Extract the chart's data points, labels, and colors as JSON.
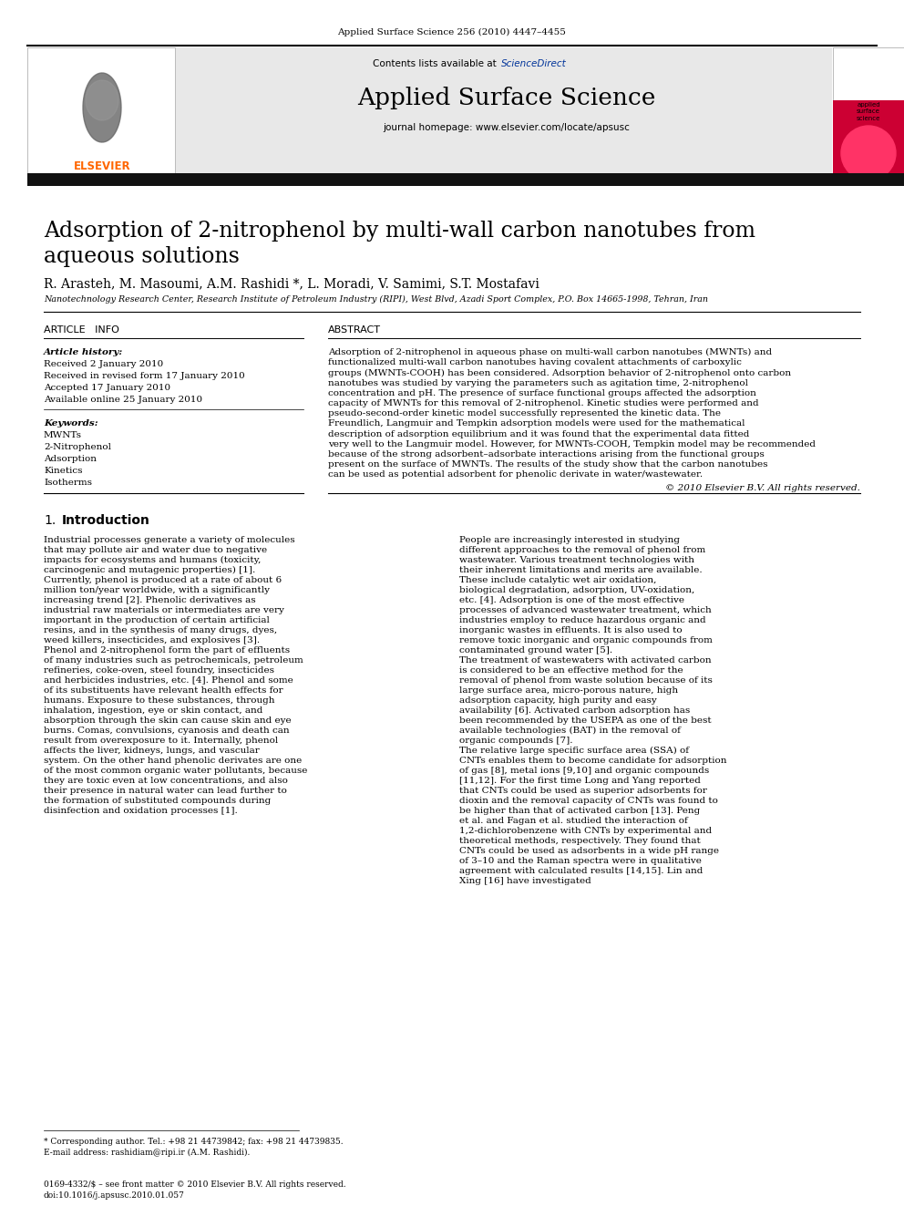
{
  "journal_header": "Applied Surface Science 256 (2010) 4447–4455",
  "contents_text": "Contents lists available at ",
  "sciencedirect": "ScienceDirect",
  "journal_name": "Applied Surface Science",
  "journal_homepage": "journal homepage: www.elsevier.com/locate/apsusc",
  "title_line1": "Adsorption of 2-nitrophenol by multi-wall carbon nanotubes from",
  "title_line2": "aqueous solutions",
  "authors": "R. Arasteh, M. Masoumi, A.M. Rashidi *, L. Moradi, V. Samimi, S.T. Mostafavi",
  "affiliation": "Nanotechnology Research Center, Research Institute of Petroleum Industry (RIPI), West Blvd, Azadi Sport Complex, P.O. Box 14665-1998, Tehran, Iran",
  "article_info_title": "ARTICLE   INFO",
  "abstract_title": "ABSTRACT",
  "article_history_label": "Article history:",
  "received": "Received 2 January 2010",
  "received_revised": "Received in revised form 17 January 2010",
  "accepted": "Accepted 17 January 2010",
  "available_online": "Available online 25 January 2010",
  "keywords_label": "Keywords:",
  "keywords": [
    "MWNTs",
    "2-Nitrophenol",
    "Adsorption",
    "Kinetics",
    "Isotherms"
  ],
  "abstract_text": "Adsorption of 2-nitrophenol in aqueous phase on multi-wall carbon nanotubes (MWNTs) and functionalized multi-wall carbon nanotubes having covalent attachments of carboxylic groups (MWNTs-COOH) has been considered. Adsorption behavior of 2-nitrophenol onto carbon nanotubes was studied by varying the parameters such as agitation time, 2-nitrophenol concentration and pH. The presence of surface functional groups affected the adsorption capacity of MWNTs for this removal of 2-nitrophenol. Kinetic studies were performed and pseudo-second-order kinetic model successfully represented the kinetic data. The Freundlich, Langmuir and Tempkin adsorption models were used for the mathematical description of adsorption equilibrium and it was found that the experimental data fitted very well to the Langmuir model. However, for MWNTs-COOH, Tempkin model may be recommended because of the strong adsorbent–adsorbate interactions arising from the functional groups present on the surface of MWNTs. The results of the study show that the carbon nanotubes can be used as potential adsorbent for phenolic derivate in water/wastewater.",
  "copyright": "© 2010 Elsevier B.V. All rights reserved.",
  "section_number": "1.",
  "section_title": "Introduction",
  "intro_left": "    Industrial processes generate a variety of molecules that may pollute air and water due to negative impacts for ecosystems and humans (toxicity, carcinogenic and mutagenic properties) [1]. Currently, phenol is produced at a rate of about 6 million ton/year worldwide, with a significantly increasing trend [2]. Phenolic derivatives as industrial raw materials or intermediates are very important in the production of certain artificial resins, and in the synthesis of many drugs, dyes, weed killers, insecticides, and explosives [3]. Phenol and 2-nitrophenol form the part of effluents of many industries such as petrochemicals, petroleum refineries, coke-oven, steel foundry, insecticides and herbicides industries, etc. [4]. Phenol and some of its substituents have relevant health effects for humans. Exposure to these substances, through inhalation, ingestion, eye or skin contact, and absorption through the skin can cause skin and eye burns. Comas, convulsions, cyanosis and death can result from overexposure to it. Internally, phenol affects the liver, kidneys, lungs, and vascular system. On the other hand phenolic derivates are one of the most common organic water pollutants, because they are toxic even at low concentrations, and also their presence in natural water can lead further to the formation of substituted compounds during disinfection and oxidation processes [1].",
  "intro_right_p1": "    People are increasingly interested in studying different approaches to the removal of phenol from wastewater. Various treatment technologies with their inherent limitations and merits are available. These include catalytic wet air oxidation, biological degradation, adsorption, UV-oxidation, etc. [4]. Adsorption is one of the most effective processes of advanced wastewater treatment, which industries employ to reduce hazardous organic and inorganic wastes in effluents. It is also used to remove toxic inorganic and organic compounds from contaminated ground water [5].",
  "intro_right_p2": "    The treatment of wastewaters with activated carbon is considered to be an effective method for the removal of phenol from waste solution because of its large surface area, micro-porous nature, high adsorption capacity, high purity and easy availability [6]. Activated carbon adsorption has been recommended by the USEPA as one of the best available technologies (BAT) in the removal of organic compounds [7].",
  "intro_right_p3": "    The relative large specific surface area (SSA) of CNTs enables them to become candidate for adsorption of gas [8], metal ions [9,10] and organic compounds [11,12]. For the first time Long and Yang reported that CNTs could be used as superior adsorbents for dioxin and the removal capacity of CNTs was found to be higher than that of activated carbon [13]. Peng et al. and Fagan et al. studied the interaction of 1,2-dichlorobenzene with CNTs by experimental and theoretical methods, respectively. They found that CNTs could be used as adsorbents in a wide pH range of 3–10 and the Raman spectra were in qualitative agreement with calculated results [14,15]. Lin and Xing [16] have investigated",
  "footnote_star": "* Corresponding author. Tel.: +98 21 44739842; fax: +98 21 44739835.",
  "footnote_email": "E-mail address: rashidiam@ripi.ir (A.M. Rashidi).",
  "footer_issn": "0169-4332/$ – see front matter © 2010 Elsevier B.V. All rights reserved.",
  "footer_doi": "doi:10.1016/j.apsusc.2010.01.057",
  "elsevier_orange": "#ff6600",
  "sciencedirect_blue": "#003399"
}
